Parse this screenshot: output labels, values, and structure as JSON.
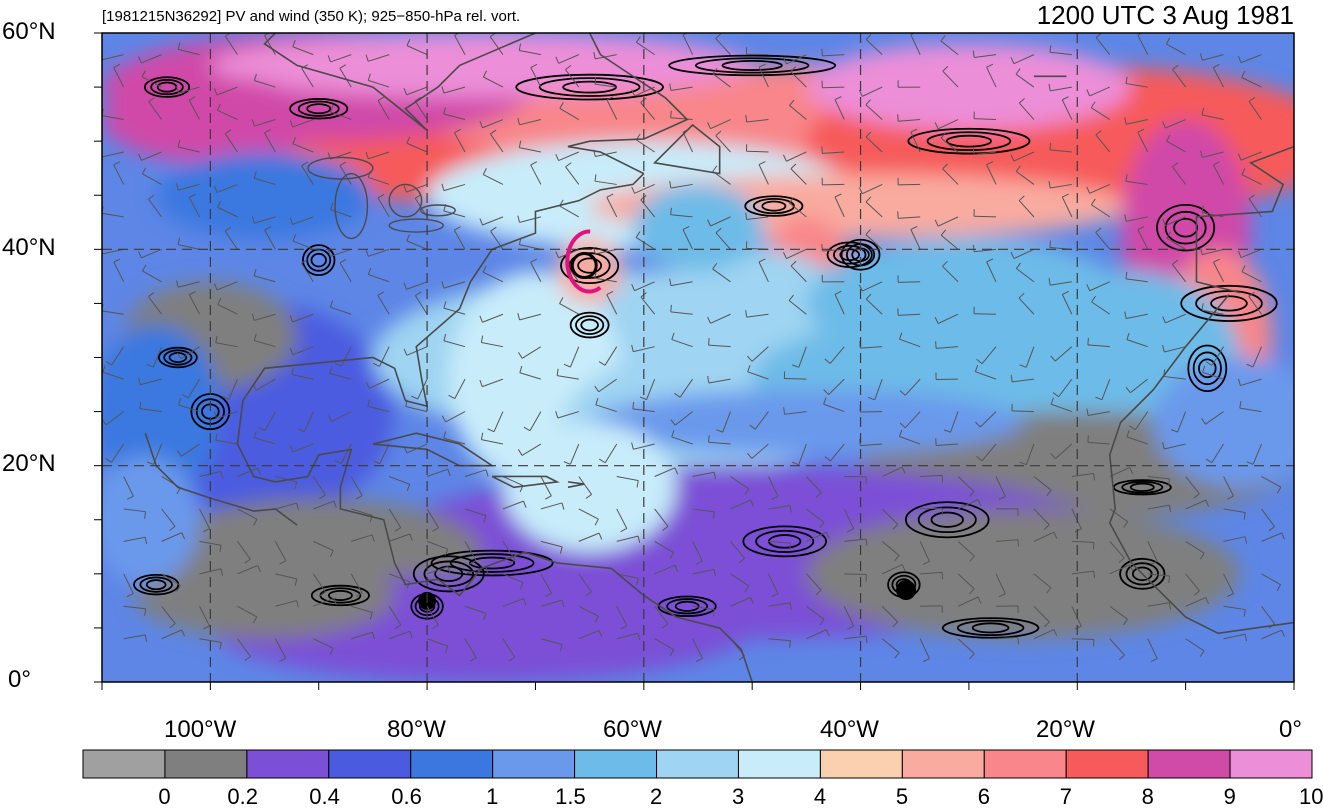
{
  "map": {
    "title_left": "[1981215N36292] PV and wind (350 K); 925−850-hPa rel. vort.",
    "title_right": "1200 UTC 3 Aug 1981",
    "lon_range": [
      -110,
      0
    ],
    "lat_range": [
      0,
      60
    ],
    "lat_labels": [
      "60°N",
      "40°N",
      "20°N",
      "0°"
    ],
    "lat_values": [
      60,
      40,
      20,
      0
    ],
    "lon_labels": [
      "100°W",
      "80°W",
      "60°W",
      "40°W",
      "20°W",
      "0°"
    ],
    "lon_values": [
      -100,
      -80,
      -60,
      -40,
      -20,
      0
    ],
    "storm_marker": {
      "lon": -65.5,
      "lat": 38.5,
      "color": "#e0147c"
    }
  },
  "colorbar": {
    "levels": [
      "0",
      "0.2",
      "0.4",
      "0.6",
      "1",
      "1.5",
      "2",
      "3",
      "4",
      "5",
      "6",
      "7",
      "8",
      "9",
      "10"
    ],
    "colors": [
      "#a0a0a0",
      "#7f7f7f",
      "#7b4fd6",
      "#4b5be0",
      "#3a78e0",
      "#6a99ec",
      "#6dbbe8",
      "#9fd4f2",
      "#c8ecfa",
      "#fbd0b0",
      "#f9aba0",
      "#f8868a",
      "#f65a5a",
      "#d04aa8",
      "#ec8ed8"
    ]
  }
}
